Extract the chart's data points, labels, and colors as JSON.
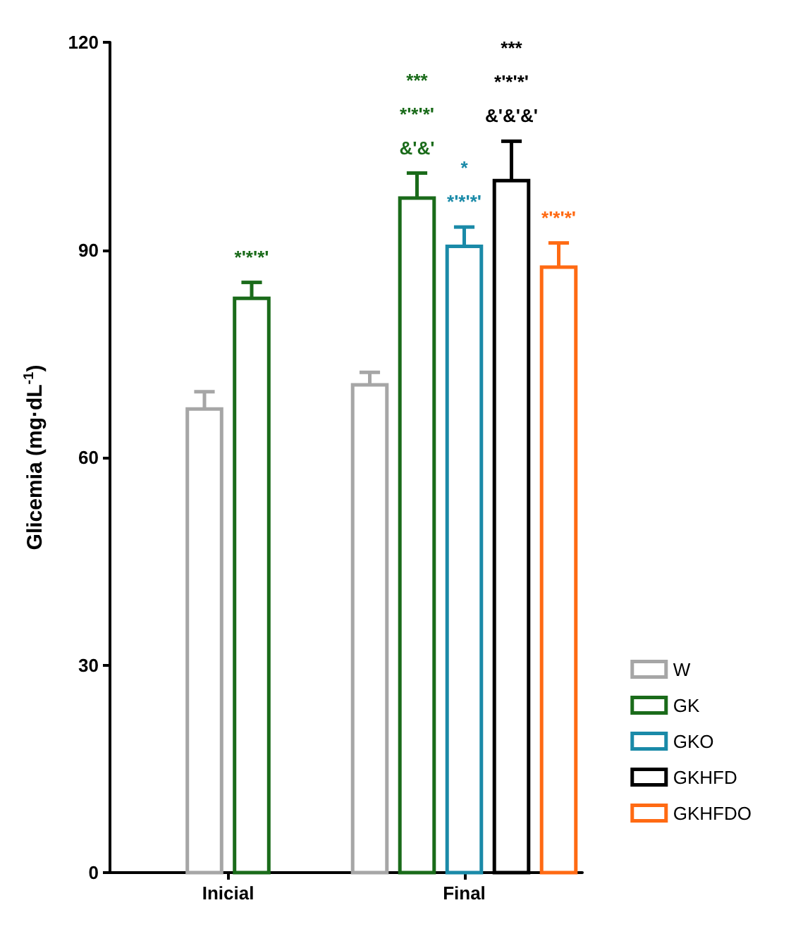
{
  "chart_data": {
    "type": "bar",
    "ylabel": "Glicemia (mg·dL$^{-1}$)",
    "categories": [
      "Inicial",
      "Final"
    ],
    "series": [
      {
        "name": "W",
        "color": "#a6a6a6",
        "values": [
          67,
          70.5
        ],
        "errors": [
          2.5,
          1.8
        ]
      },
      {
        "name": "GK",
        "color": "#1a6b1a",
        "values": [
          83,
          97.5
        ],
        "errors": [
          2.3,
          3.6
        ],
        "value_labels": [
          "*'*'*'",
          "***\n*'*'*'\n&'&'"
        ]
      },
      {
        "name": "GKO",
        "color": "#1a8aa8",
        "values": [
          null,
          90.5
        ],
        "errors": [
          null,
          2.8
        ],
        "value_labels": [
          null,
          "*\n*'*'*'"
        ]
      },
      {
        "name": "GKHFD",
        "color": "#000000",
        "values": [
          null,
          100
        ],
        "errors": [
          null,
          5.7
        ],
        "value_labels": [
          null,
          "***\n*'*'*'\n&'&'&'"
        ]
      },
      {
        "name": "GKHFDO",
        "color": "#ff6a13",
        "values": [
          null,
          87.5
        ],
        "errors": [
          null,
          3.5
        ],
        "value_labels": [
          null,
          "*'*'*'"
        ]
      }
    ],
    "ylim": [
      0,
      120
    ],
    "yticks": [
      0,
      30,
      60,
      90,
      120
    ],
    "grid": false,
    "legend": "right"
  }
}
